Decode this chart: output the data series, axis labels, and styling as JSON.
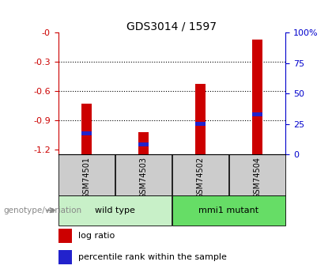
{
  "title": "GDS3014 / 1597",
  "samples": [
    "GSM74501",
    "GSM74503",
    "GSM74502",
    "GSM74504"
  ],
  "log_ratios": [
    -0.73,
    -1.02,
    -0.53,
    -0.07
  ],
  "percentile_ranks": [
    17,
    8,
    25,
    33
  ],
  "ylim_left": [
    -1.25,
    0.0
  ],
  "ylim_right": [
    0,
    100
  ],
  "yticks_left": [
    0.0,
    -0.3,
    -0.6,
    -0.9,
    -1.2
  ],
  "yticks_right": [
    0,
    25,
    50,
    75,
    100
  ],
  "groups": [
    {
      "label": "wild type",
      "samples": [
        "GSM74501",
        "GSM74503"
      ],
      "color": "#c8f0c8"
    },
    {
      "label": "mmi1 mutant",
      "samples": [
        "GSM74502",
        "GSM74504"
      ],
      "color": "#66dd66"
    }
  ],
  "bar_color": "#cc0000",
  "percentile_color": "#2222cc",
  "bar_width": 0.18,
  "left_axis_color": "#cc0000",
  "right_axis_color": "#0000cc",
  "legend_label_ratio": "log ratio",
  "legend_label_percentile": "percentile rank within the sample",
  "genotype_label": "genotype/variation",
  "sample_box_color": "#cccccc",
  "title_fontsize": 10,
  "tick_fontsize": 8,
  "sample_fontsize": 7,
  "group_fontsize": 8,
  "legend_fontsize": 8
}
